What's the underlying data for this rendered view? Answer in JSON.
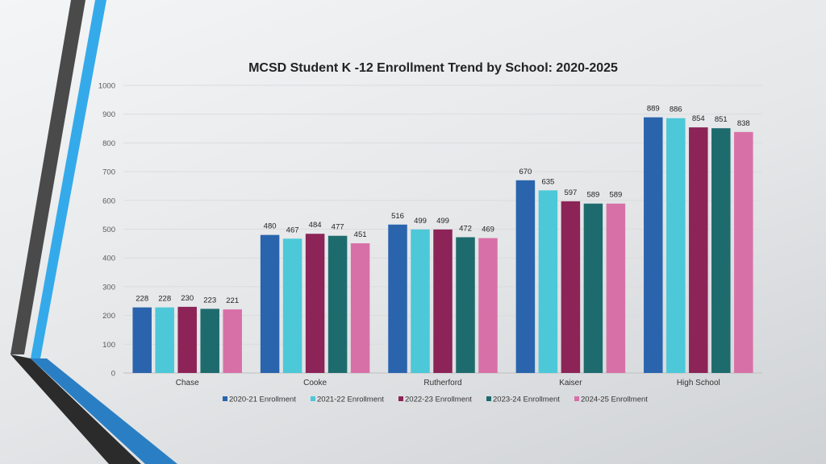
{
  "chart_data": {
    "type": "bar",
    "title": "MCSD Student K -12 Enrollment Trend by School: 2020-2025",
    "categories": [
      "Chase",
      "Cooke",
      "Rutherford",
      "Kaiser",
      "High School"
    ],
    "series": [
      {
        "name": "2020-21 Enrollment",
        "color": "#2a64ad",
        "values": [
          228,
          480,
          516,
          670,
          889
        ]
      },
      {
        "name": "2021-22 Enrollment",
        "color": "#4cc8d8",
        "values": [
          228,
          467,
          499,
          635,
          886
        ]
      },
      {
        "name": "2022-23 Enrollment",
        "color": "#8c2458",
        "values": [
          230,
          484,
          499,
          597,
          854
        ]
      },
      {
        "name": "2023-24 Enrollment",
        "color": "#1e6b6e",
        "values": [
          223,
          477,
          472,
          589,
          851
        ]
      },
      {
        "name": "2024-25 Enrollment",
        "color": "#d870a8",
        "values": [
          221,
          451,
          469,
          589,
          838
        ]
      }
    ],
    "ylim": [
      0,
      1000
    ],
    "yticks": [
      0,
      100,
      200,
      300,
      400,
      500,
      600,
      700,
      800,
      900,
      1000
    ],
    "xlabel": "",
    "ylabel": "",
    "grid": true,
    "legend": "bottom"
  }
}
